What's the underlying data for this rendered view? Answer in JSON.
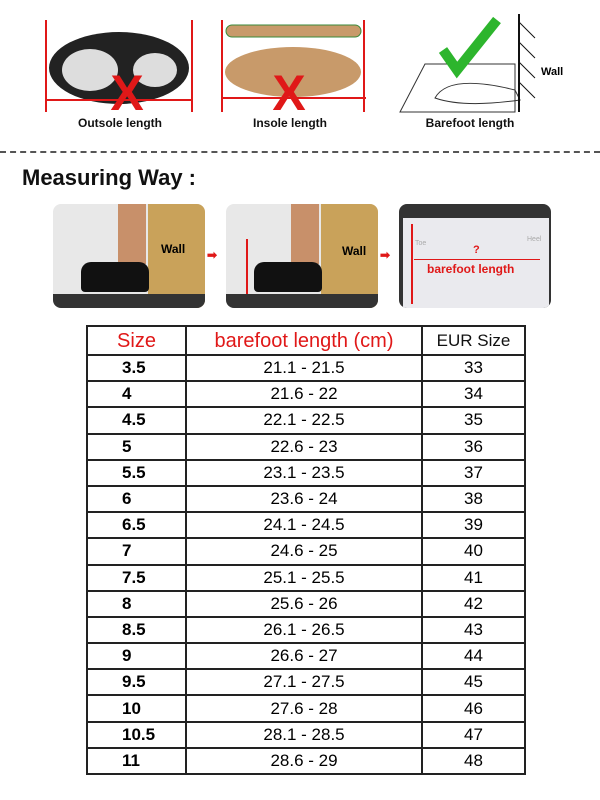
{
  "diagrams": [
    {
      "caption": "Outsole length",
      "mark": "cross"
    },
    {
      "caption": "Insole length",
      "mark": "cross"
    },
    {
      "caption": "Barefoot length",
      "mark": "check",
      "wall_label": "Wall"
    }
  ],
  "measuring": {
    "title": "Measuring Way :",
    "steps": [
      {
        "label": "Wall"
      },
      {
        "label": "Wall"
      },
      {
        "label": "barefoot length",
        "mark": "?",
        "toe": "Toe",
        "heel": "Heel"
      }
    ]
  },
  "colors": {
    "accent_red": "#e01818",
    "check_green": "#2db52d"
  },
  "size_table": {
    "headers": [
      "Size",
      "barefoot length (cm)",
      "EUR Size"
    ],
    "rows": [
      [
        "3.5",
        "21.1 - 21.5",
        "33"
      ],
      [
        "4",
        "21.6 - 22",
        "34"
      ],
      [
        "4.5",
        "22.1 - 22.5",
        "35"
      ],
      [
        "5",
        "22.6 - 23",
        "36"
      ],
      [
        "5.5",
        "23.1 - 23.5",
        "37"
      ],
      [
        "6",
        "23.6 - 24",
        "38"
      ],
      [
        "6.5",
        "24.1 - 24.5",
        "39"
      ],
      [
        "7",
        "24.6 - 25",
        "40"
      ],
      [
        "7.5",
        "25.1 - 25.5",
        "41"
      ],
      [
        "8",
        "25.6 - 26",
        "42"
      ],
      [
        "8.5",
        "26.1 - 26.5",
        "43"
      ],
      [
        "9",
        "26.6 - 27",
        "44"
      ],
      [
        "9.5",
        "27.1 - 27.5",
        "45"
      ],
      [
        "10",
        "27.6 - 28",
        "46"
      ],
      [
        "10.5",
        "28.1 - 28.5",
        "47"
      ],
      [
        "11",
        "28.6 - 29",
        "48"
      ]
    ]
  }
}
